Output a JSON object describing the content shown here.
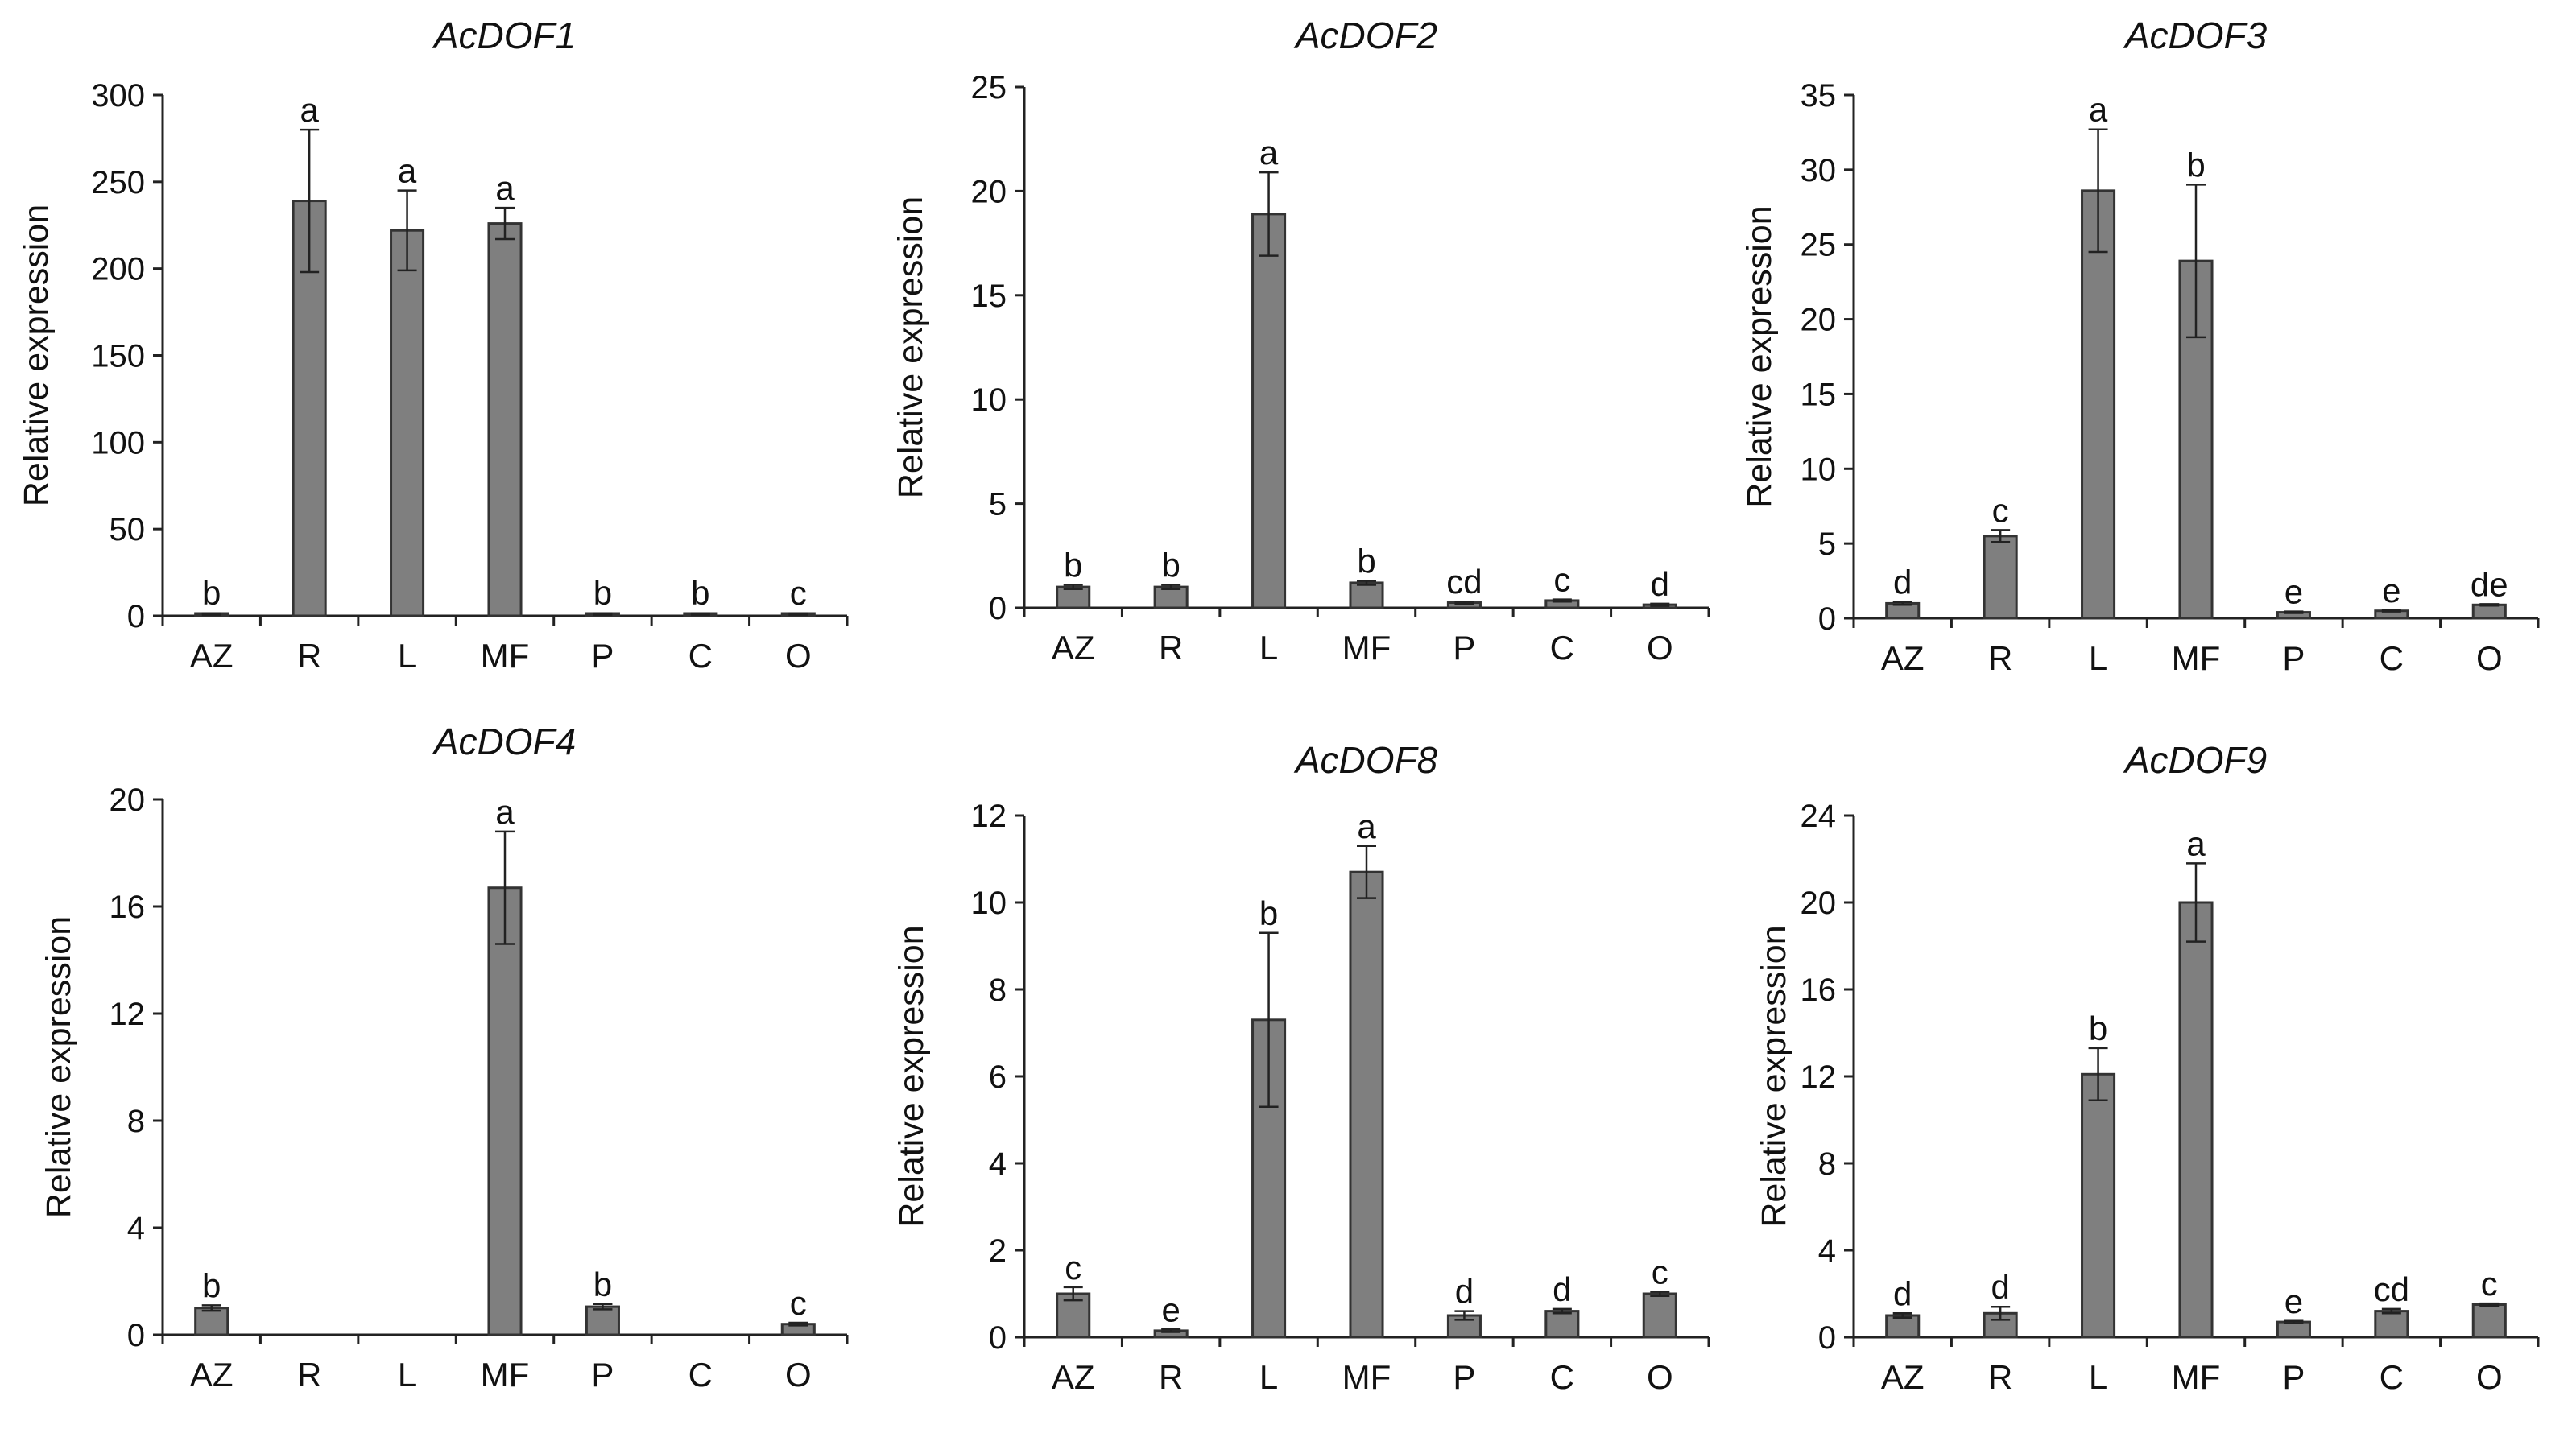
{
  "chart_data": [
    {
      "type": "bar",
      "title": "AcDOF1",
      "xlabel": "",
      "ylabel": "Relative expression",
      "categories": [
        "AZ",
        "R",
        "L",
        "MF",
        "P",
        "C",
        "O"
      ],
      "values": [
        1,
        239,
        222,
        226,
        1,
        1,
        1
      ],
      "errors": [
        0.5,
        41,
        23,
        9,
        0.5,
        0.5,
        0.5
      ],
      "significance": [
        "b",
        "a",
        "a",
        "a",
        "b",
        "b",
        "c"
      ],
      "ylim": [
        0,
        300
      ],
      "yticks": [
        0,
        50,
        100,
        150,
        200,
        250,
        300
      ]
    },
    {
      "type": "bar",
      "title": "AcDOF2",
      "xlabel": "",
      "ylabel": "Relative expression",
      "categories": [
        "AZ",
        "R",
        "L",
        "MF",
        "P",
        "C",
        "O"
      ],
      "values": [
        1.0,
        1.0,
        18.9,
        1.2,
        0.25,
        0.35,
        0.15
      ],
      "errors": [
        0.1,
        0.1,
        2.0,
        0.1,
        0.05,
        0.05,
        0.05
      ],
      "significance": [
        "b",
        "b",
        "a",
        "b",
        "cd",
        "c",
        "d"
      ],
      "ylim": [
        0,
        25
      ],
      "yticks": [
        0,
        5,
        10,
        15,
        20,
        25
      ]
    },
    {
      "type": "bar",
      "title": "AcDOF3",
      "xlabel": "",
      "ylabel": "Relative expression",
      "categories": [
        "AZ",
        "R",
        "L",
        "MF",
        "P",
        "C",
        "O"
      ],
      "values": [
        1.0,
        5.5,
        28.6,
        23.9,
        0.4,
        0.5,
        0.9
      ],
      "errors": [
        0.1,
        0.4,
        4.1,
        5.1,
        0.05,
        0.05,
        0.05
      ],
      "significance": [
        "d",
        "c",
        "a",
        "b",
        "e",
        "e",
        "de"
      ],
      "ylim": [
        0,
        35
      ],
      "yticks": [
        0,
        5,
        10,
        15,
        20,
        25,
        30,
        35
      ]
    },
    {
      "type": "bar",
      "title": "AcDOF4",
      "xlabel": "",
      "ylabel": "Relative expression",
      "categories": [
        "AZ",
        "R",
        "L",
        "MF",
        "P",
        "C",
        "O"
      ],
      "values": [
        1.0,
        0,
        0,
        16.7,
        1.05,
        0,
        0.4
      ],
      "errors": [
        0.1,
        0,
        0,
        2.1,
        0.1,
        0,
        0.05
      ],
      "significance": [
        "b",
        "",
        "",
        "a",
        "b",
        "",
        "c"
      ],
      "ylim": [
        0,
        20
      ],
      "yticks": [
        0,
        4,
        8,
        12,
        16,
        20
      ]
    },
    {
      "type": "bar",
      "title": "AcDOF8",
      "xlabel": "",
      "ylabel": "Relative expression",
      "categories": [
        "AZ",
        "R",
        "L",
        "MF",
        "P",
        "C",
        "O"
      ],
      "values": [
        1.0,
        0.15,
        7.3,
        10.7,
        0.5,
        0.6,
        1.0
      ],
      "errors": [
        0.15,
        0.03,
        2.0,
        0.6,
        0.1,
        0.05,
        0.05
      ],
      "significance": [
        "c",
        "e",
        "b",
        "a",
        "d",
        "d",
        "c"
      ],
      "ylim": [
        0,
        12
      ],
      "yticks": [
        0,
        2,
        4,
        6,
        8,
        10,
        12
      ]
    },
    {
      "type": "bar",
      "title": "AcDOF9",
      "xlabel": "",
      "ylabel": "Relative expression",
      "categories": [
        "AZ",
        "R",
        "L",
        "MF",
        "P",
        "C",
        "O"
      ],
      "values": [
        1.0,
        1.1,
        12.1,
        20.0,
        0.7,
        1.2,
        1.5
      ],
      "errors": [
        0.1,
        0.3,
        1.2,
        1.8,
        0.05,
        0.1,
        0.05
      ],
      "significance": [
        "d",
        "d",
        "b",
        "a",
        "e",
        "cd",
        "c"
      ],
      "ylim": [
        0,
        24
      ],
      "yticks": [
        0,
        4,
        8,
        12,
        16,
        20,
        24
      ]
    }
  ],
  "colors": {
    "bar_fill": "#7f7f7f",
    "bar_stroke": "#333333",
    "axis": "#222222",
    "text": "#111111"
  }
}
